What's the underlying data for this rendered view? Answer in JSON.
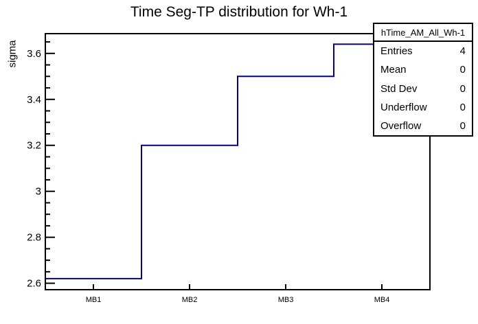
{
  "chart_data": {
    "type": "bar",
    "style": "root-step-histogram",
    "title": "Time Seg-TP distribution for Wh-1",
    "xlabel": "",
    "ylabel": "sigma",
    "categories": [
      "MB1",
      "MB2",
      "MB3",
      "MB4"
    ],
    "values": [
      2.62,
      3.2,
      3.5,
      3.64
    ],
    "ylim": [
      2.572,
      3.686
    ],
    "ytick_values": [
      2.6,
      2.8,
      3.0,
      3.2,
      3.4,
      3.6
    ],
    "ytick_labels": [
      "2.6",
      "2.8",
      "3",
      "3.2",
      "3.4",
      "3.6"
    ],
    "ytick_minor_step": 0.05,
    "grid": "off",
    "legend": "none",
    "line_color": "#00008b",
    "frame_color": "#000000"
  },
  "stats": {
    "header": "hTime_AM_All_Wh-1",
    "rows": [
      {
        "label": "Entries",
        "value": "4"
      },
      {
        "label": "Mean",
        "value": "0"
      },
      {
        "label": "Std Dev",
        "value": "0"
      },
      {
        "label": "Underflow",
        "value": "0"
      },
      {
        "label": "Overflow",
        "value": "0"
      }
    ]
  }
}
